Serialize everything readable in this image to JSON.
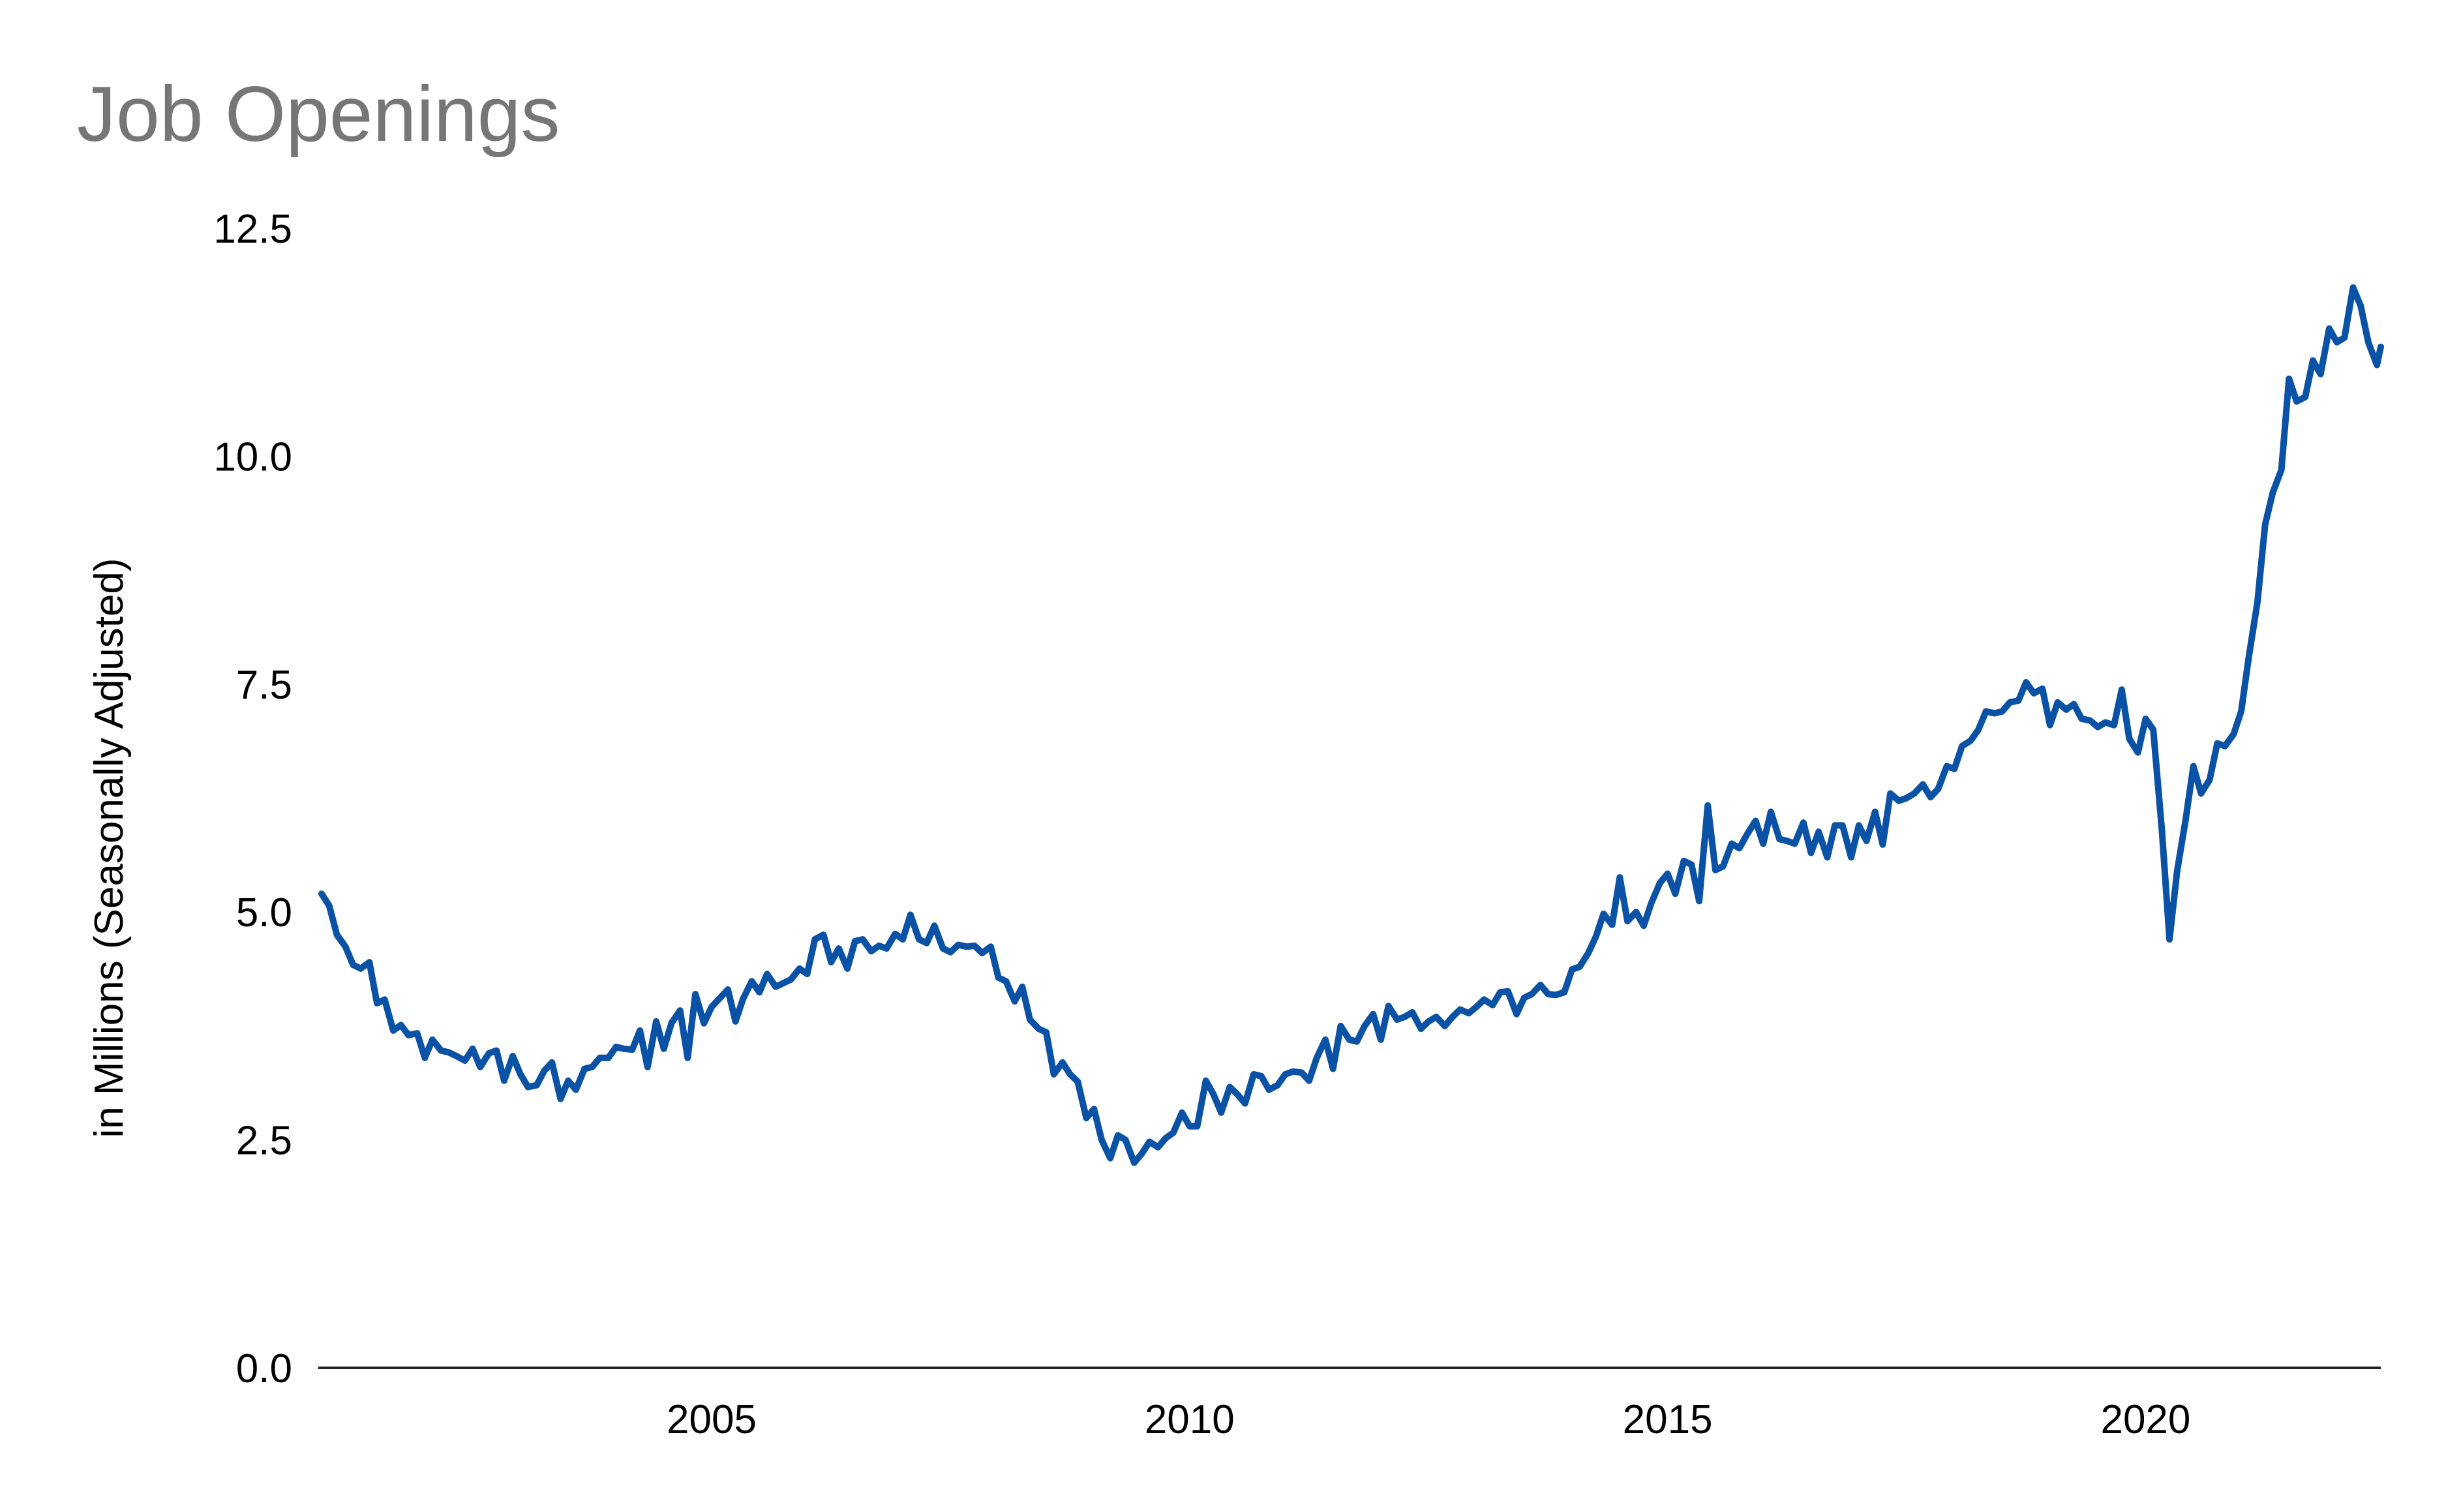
{
  "chart_data": {
    "type": "line",
    "title": "Job Openings",
    "ylabel": "in Millions (Seasonally Adjusted)",
    "xlabel": "",
    "xlim": [
      2000.92,
      2022.46
    ],
    "ylim": [
      0,
      12.5
    ],
    "grid": false,
    "legend": "none",
    "line_color": "#0a52a5",
    "axis_color": "#222222",
    "x_ticks": [
      {
        "value": 2005,
        "label": "2005"
      },
      {
        "value": 2010,
        "label": "2010"
      },
      {
        "value": 2015,
        "label": "2015"
      },
      {
        "value": 2020,
        "label": "2020"
      }
    ],
    "y_ticks": [
      {
        "value": 0,
        "label": "0.0"
      },
      {
        "value": 2.5,
        "label": "2.5"
      },
      {
        "value": 5,
        "label": "5.0"
      },
      {
        "value": 7.5,
        "label": "7.5"
      },
      {
        "value": 10,
        "label": "10.0"
      },
      {
        "value": 12.5,
        "label": "12.5"
      }
    ],
    "series": [
      {
        "name": "",
        "x": [
          2000.92,
          2001.0,
          2001.08,
          2001.17,
          2001.25,
          2001.33,
          2001.42,
          2001.5,
          2001.58,
          2001.67,
          2001.75,
          2001.83,
          2001.92,
          2002.0,
          2002.08,
          2002.17,
          2002.25,
          2002.33,
          2002.42,
          2002.5,
          2002.58,
          2002.67,
          2002.75,
          2002.83,
          2002.92,
          2003.0,
          2003.08,
          2003.17,
          2003.25,
          2003.33,
          2003.42,
          2003.5,
          2003.58,
          2003.67,
          2003.75,
          2003.83,
          2003.92,
          2004.0,
          2004.08,
          2004.17,
          2004.25,
          2004.33,
          2004.42,
          2004.5,
          2004.58,
          2004.67,
          2004.75,
          2004.83,
          2004.92,
          2005.0,
          2005.08,
          2005.17,
          2005.25,
          2005.33,
          2005.42,
          2005.5,
          2005.58,
          2005.67,
          2005.75,
          2005.83,
          2005.92,
          2006.0,
          2006.08,
          2006.17,
          2006.25,
          2006.33,
          2006.42,
          2006.5,
          2006.58,
          2006.67,
          2006.75,
          2006.83,
          2006.92,
          2007.0,
          2007.08,
          2007.17,
          2007.25,
          2007.33,
          2007.42,
          2007.5,
          2007.58,
          2007.67,
          2007.75,
          2007.83,
          2007.92,
          2008.0,
          2008.08,
          2008.17,
          2008.25,
          2008.33,
          2008.42,
          2008.5,
          2008.58,
          2008.67,
          2008.75,
          2008.83,
          2008.92,
          2009.0,
          2009.08,
          2009.17,
          2009.25,
          2009.33,
          2009.42,
          2009.5,
          2009.58,
          2009.67,
          2009.75,
          2009.83,
          2009.92,
          2010.0,
          2010.08,
          2010.17,
          2010.25,
          2010.33,
          2010.42,
          2010.5,
          2010.58,
          2010.67,
          2010.75,
          2010.83,
          2010.92,
          2011.0,
          2011.08,
          2011.17,
          2011.25,
          2011.33,
          2011.42,
          2011.5,
          2011.58,
          2011.67,
          2011.75,
          2011.83,
          2011.92,
          2012.0,
          2012.08,
          2012.17,
          2012.25,
          2012.33,
          2012.42,
          2012.5,
          2012.58,
          2012.67,
          2012.75,
          2012.83,
          2012.92,
          2013.0,
          2013.08,
          2013.17,
          2013.25,
          2013.33,
          2013.42,
          2013.5,
          2013.58,
          2013.67,
          2013.75,
          2013.83,
          2013.92,
          2014.0,
          2014.08,
          2014.17,
          2014.25,
          2014.33,
          2014.42,
          2014.5,
          2014.58,
          2014.67,
          2014.75,
          2014.83,
          2014.92,
          2015.0,
          2015.08,
          2015.17,
          2015.25,
          2015.33,
          2015.42,
          2015.5,
          2015.58,
          2015.67,
          2015.75,
          2015.83,
          2015.92,
          2016.0,
          2016.08,
          2016.17,
          2016.25,
          2016.33,
          2016.42,
          2016.5,
          2016.58,
          2016.67,
          2016.75,
          2016.83,
          2016.92,
          2017.0,
          2017.08,
          2017.17,
          2017.25,
          2017.33,
          2017.42,
          2017.5,
          2017.58,
          2017.67,
          2017.75,
          2017.83,
          2017.92,
          2018.0,
          2018.08,
          2018.17,
          2018.25,
          2018.33,
          2018.42,
          2018.5,
          2018.58,
          2018.67,
          2018.75,
          2018.83,
          2018.92,
          2019.0,
          2019.08,
          2019.17,
          2019.25,
          2019.33,
          2019.42,
          2019.5,
          2019.58,
          2019.67,
          2019.75,
          2019.83,
          2019.92,
          2020.0,
          2020.08,
          2020.17,
          2020.25,
          2020.33,
          2020.42,
          2020.5,
          2020.58,
          2020.67,
          2020.75,
          2020.83,
          2020.92,
          2021.0,
          2021.08,
          2021.17,
          2021.25,
          2021.33,
          2021.42,
          2021.5,
          2021.58,
          2021.67,
          2021.75,
          2021.83,
          2021.92,
          2022.0,
          2022.08,
          2022.17,
          2022.25,
          2022.33,
          2022.42,
          2022.46
        ],
        "values": [
          5.2,
          5.07,
          4.75,
          4.62,
          4.42,
          4.38,
          4.45,
          4.0,
          4.04,
          3.7,
          3.76,
          3.65,
          3.67,
          3.4,
          3.6,
          3.48,
          3.46,
          3.42,
          3.37,
          3.5,
          3.3,
          3.45,
          3.48,
          3.15,
          3.42,
          3.22,
          3.08,
          3.1,
          3.26,
          3.35,
          2.95,
          3.15,
          3.05,
          3.28,
          3.3,
          3.4,
          3.4,
          3.52,
          3.5,
          3.49,
          3.7,
          3.3,
          3.8,
          3.5,
          3.78,
          3.92,
          3.4,
          4.1,
          3.78,
          3.96,
          4.05,
          4.15,
          3.8,
          4.05,
          4.24,
          4.12,
          4.32,
          4.18,
          4.22,
          4.26,
          4.38,
          4.32,
          4.7,
          4.75,
          4.45,
          4.6,
          4.38,
          4.68,
          4.7,
          4.57,
          4.63,
          4.6,
          4.76,
          4.7,
          4.97,
          4.7,
          4.66,
          4.85,
          4.6,
          4.56,
          4.64,
          4.62,
          4.63,
          4.55,
          4.62,
          4.28,
          4.24,
          4.02,
          4.18,
          3.82,
          3.72,
          3.68,
          3.22,
          3.35,
          3.22,
          3.14,
          2.74,
          2.84,
          2.5,
          2.3,
          2.55,
          2.5,
          2.25,
          2.35,
          2.48,
          2.42,
          2.52,
          2.58,
          2.8,
          2.65,
          2.65,
          3.15,
          3.0,
          2.8,
          3.08,
          3.0,
          2.9,
          3.22,
          3.2,
          3.05,
          3.1,
          3.22,
          3.25,
          3.24,
          3.15,
          3.4,
          3.6,
          3.28,
          3.75,
          3.6,
          3.58,
          3.75,
          3.88,
          3.6,
          3.97,
          3.82,
          3.85,
          3.9,
          3.72,
          3.8,
          3.85,
          3.75,
          3.85,
          3.93,
          3.89,
          3.96,
          4.04,
          3.98,
          4.12,
          4.13,
          3.88,
          4.06,
          4.1,
          4.2,
          4.1,
          4.09,
          4.12,
          4.37,
          4.4,
          4.55,
          4.73,
          4.98,
          4.86,
          5.38,
          4.9,
          5.0,
          4.85,
          5.1,
          5.32,
          5.42,
          5.2,
          5.56,
          5.52,
          5.12,
          6.17,
          5.46,
          5.5,
          5.75,
          5.7,
          5.85,
          6.0,
          5.75,
          6.1,
          5.8,
          5.78,
          5.75,
          5.98,
          5.65,
          5.88,
          5.6,
          5.95,
          5.95,
          5.6,
          5.95,
          5.78,
          6.1,
          5.74,
          6.3,
          6.22,
          6.25,
          6.3,
          6.4,
          6.26,
          6.35,
          6.6,
          6.57,
          6.82,
          6.88,
          7.0,
          7.2,
          7.18,
          7.2,
          7.3,
          7.32,
          7.52,
          7.4,
          7.45,
          7.05,
          7.3,
          7.22,
          7.28,
          7.12,
          7.1,
          7.03,
          7.08,
          7.05,
          7.44,
          6.9,
          6.75,
          7.12,
          7.0,
          5.9,
          4.7,
          5.45,
          6.02,
          6.6,
          6.3,
          6.45,
          6.85,
          6.82,
          6.95,
          7.2,
          7.8,
          8.4,
          9.25,
          9.6,
          9.85,
          10.85,
          10.6,
          10.65,
          11.05,
          10.9,
          11.4,
          11.25,
          11.3,
          11.85,
          11.65,
          11.25,
          11.0,
          11.2
        ]
      }
    ]
  }
}
